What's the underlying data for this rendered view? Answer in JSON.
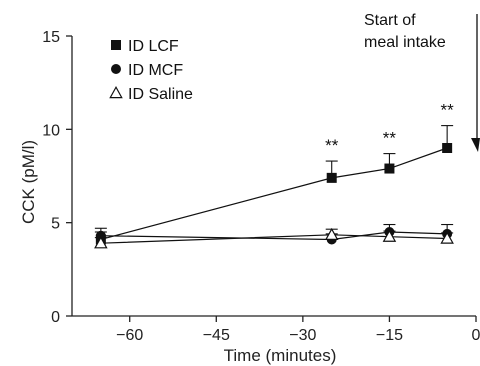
{
  "chart_data": {
    "type": "line",
    "xlabel": "Time (minutes)",
    "ylabel": "CCK (pM/l)",
    "xlim": [
      -70,
      0
    ],
    "ylim": [
      0,
      15
    ],
    "xticks": [
      -60,
      -45,
      -30,
      -15,
      0
    ],
    "xtick_labels": [
      "−60",
      "−45",
      "−30",
      "−15",
      "0"
    ],
    "yticks": [
      0,
      5,
      10,
      15
    ],
    "ytick_labels": [
      "0",
      "5",
      "10",
      "15"
    ],
    "grid": false,
    "legend_position": "top-left",
    "series": [
      {
        "name": "ID LCF",
        "marker": "filled-square",
        "x": [
          -65,
          -25,
          -15,
          -5
        ],
        "y": [
          4.1,
          7.4,
          7.9,
          9.0
        ],
        "err": [
          0.4,
          0.9,
          0.8,
          1.2
        ]
      },
      {
        "name": "ID MCF",
        "marker": "filled-circle",
        "x": [
          -65,
          -25,
          -15,
          -5
        ],
        "y": [
          4.3,
          4.1,
          4.5,
          4.4
        ],
        "err": [
          0.4,
          0.3,
          0.4,
          0.5
        ]
      },
      {
        "name": "ID Saline",
        "marker": "open-triangle",
        "x": [
          -65,
          -25,
          -15,
          -5
        ],
        "y": [
          3.9,
          4.35,
          4.25,
          4.15
        ],
        "err": [
          0.3,
          0.3,
          0.3,
          0.3
        ]
      }
    ],
    "significance": {
      "label": "**",
      "x": [
        -25,
        -15,
        -5
      ]
    },
    "annotation": {
      "lines": [
        "Start of",
        "meal intake"
      ]
    }
  }
}
